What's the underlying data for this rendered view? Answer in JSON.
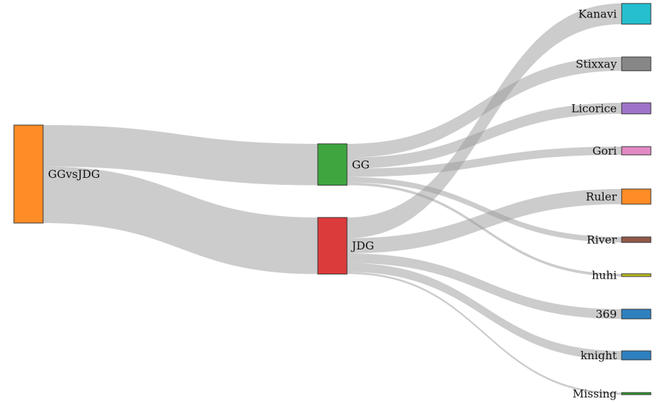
{
  "chart_data": {
    "type": "sankey",
    "nodes": [
      {
        "id": "GGvsJDG",
        "label": "GGvsJDG",
        "color": "#ff8c26"
      },
      {
        "id": "GG",
        "label": "GG",
        "color": "#3fa63f"
      },
      {
        "id": "JDG",
        "label": "JDG",
        "color": "#db3b3b"
      },
      {
        "id": "Kanavi",
        "label": "Kanavi",
        "color": "#26bfcf"
      },
      {
        "id": "Stixxay",
        "label": "Stixxay",
        "color": "#878787"
      },
      {
        "id": "Licorice",
        "label": "Licorice",
        "color": "#9e73c9"
      },
      {
        "id": "Gori",
        "label": "Gori",
        "color": "#e38ac4"
      },
      {
        "id": "Ruler",
        "label": "Ruler",
        "color": "#ff8c26"
      },
      {
        "id": "River",
        "label": "River",
        "color": "#91584a"
      },
      {
        "id": "huhi",
        "label": "huhi",
        "color": "#bcbd22"
      },
      {
        "id": "369",
        "label": "369",
        "color": "#2f80bf"
      },
      {
        "id": "knight",
        "label": "knight",
        "color": "#2f80bf"
      },
      {
        "id": "Missing",
        "label": "Missing",
        "color": "#2ca02c"
      }
    ],
    "links": [
      {
        "source": "GGvsJDG",
        "target": "GG",
        "value": 60
      },
      {
        "source": "GGvsJDG",
        "target": "JDG",
        "value": 82
      },
      {
        "source": "GG",
        "target": "Stixxay",
        "value": 20
      },
      {
        "source": "GG",
        "target": "Licorice",
        "value": 16
      },
      {
        "source": "GG",
        "target": "Gori",
        "value": 12
      },
      {
        "source": "GG",
        "target": "River",
        "value": 8
      },
      {
        "source": "GG",
        "target": "huhi",
        "value": 4
      },
      {
        "source": "JDG",
        "target": "Kanavi",
        "value": 30
      },
      {
        "source": "JDG",
        "target": "Ruler",
        "value": 22
      },
      {
        "source": "JDG",
        "target": "369",
        "value": 14
      },
      {
        "source": "JDG",
        "target": "knight",
        "value": 13
      },
      {
        "source": "JDG",
        "target": "Missing",
        "value": 3
      }
    ]
  }
}
